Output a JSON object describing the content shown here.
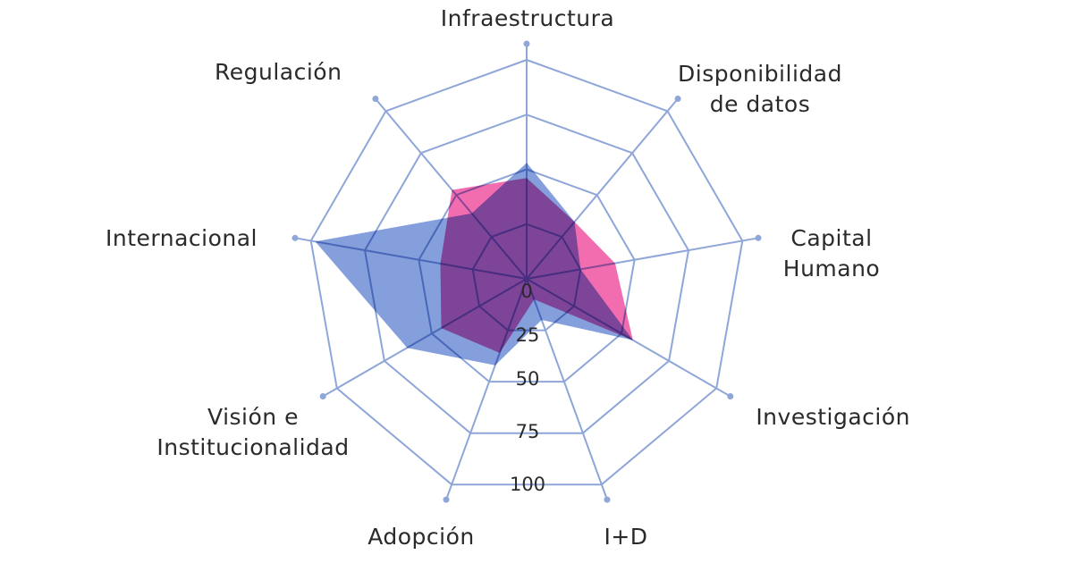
{
  "chart_data": {
    "type": "radar",
    "title": "",
    "axes": [
      {
        "key": "infraestructura",
        "lines": [
          "Infraestructura"
        ]
      },
      {
        "key": "disponibilidad",
        "lines": [
          "Disponibilidad",
          "de datos"
        ]
      },
      {
        "key": "capital",
        "lines": [
          "Capital",
          "Humano"
        ]
      },
      {
        "key": "investigacion",
        "lines": [
          "Investigación"
        ]
      },
      {
        "key": "id",
        "lines": [
          "I+D"
        ]
      },
      {
        "key": "adopcion",
        "lines": [
          "Adopción"
        ]
      },
      {
        "key": "vision",
        "lines": [
          "Visión e",
          "Institucionalidad"
        ]
      },
      {
        "key": "internacional",
        "lines": [
          "Internacional"
        ]
      },
      {
        "key": "regulacion",
        "lines": [
          "Regulación"
        ]
      }
    ],
    "tick_labels": [
      "0",
      "25",
      "50",
      "75",
      "100"
    ],
    "rmax": 100,
    "series": [
      {
        "color": "#5b7fcf",
        "values": [
          53,
          34,
          25,
          56,
          20,
          42,
          63,
          98,
          39
        ]
      },
      {
        "color": "#ee3c96",
        "values": [
          46,
          34,
          41,
          56,
          10,
          36,
          45,
          40,
          53
        ]
      }
    ],
    "grid_color": "#8ea6d8"
  }
}
